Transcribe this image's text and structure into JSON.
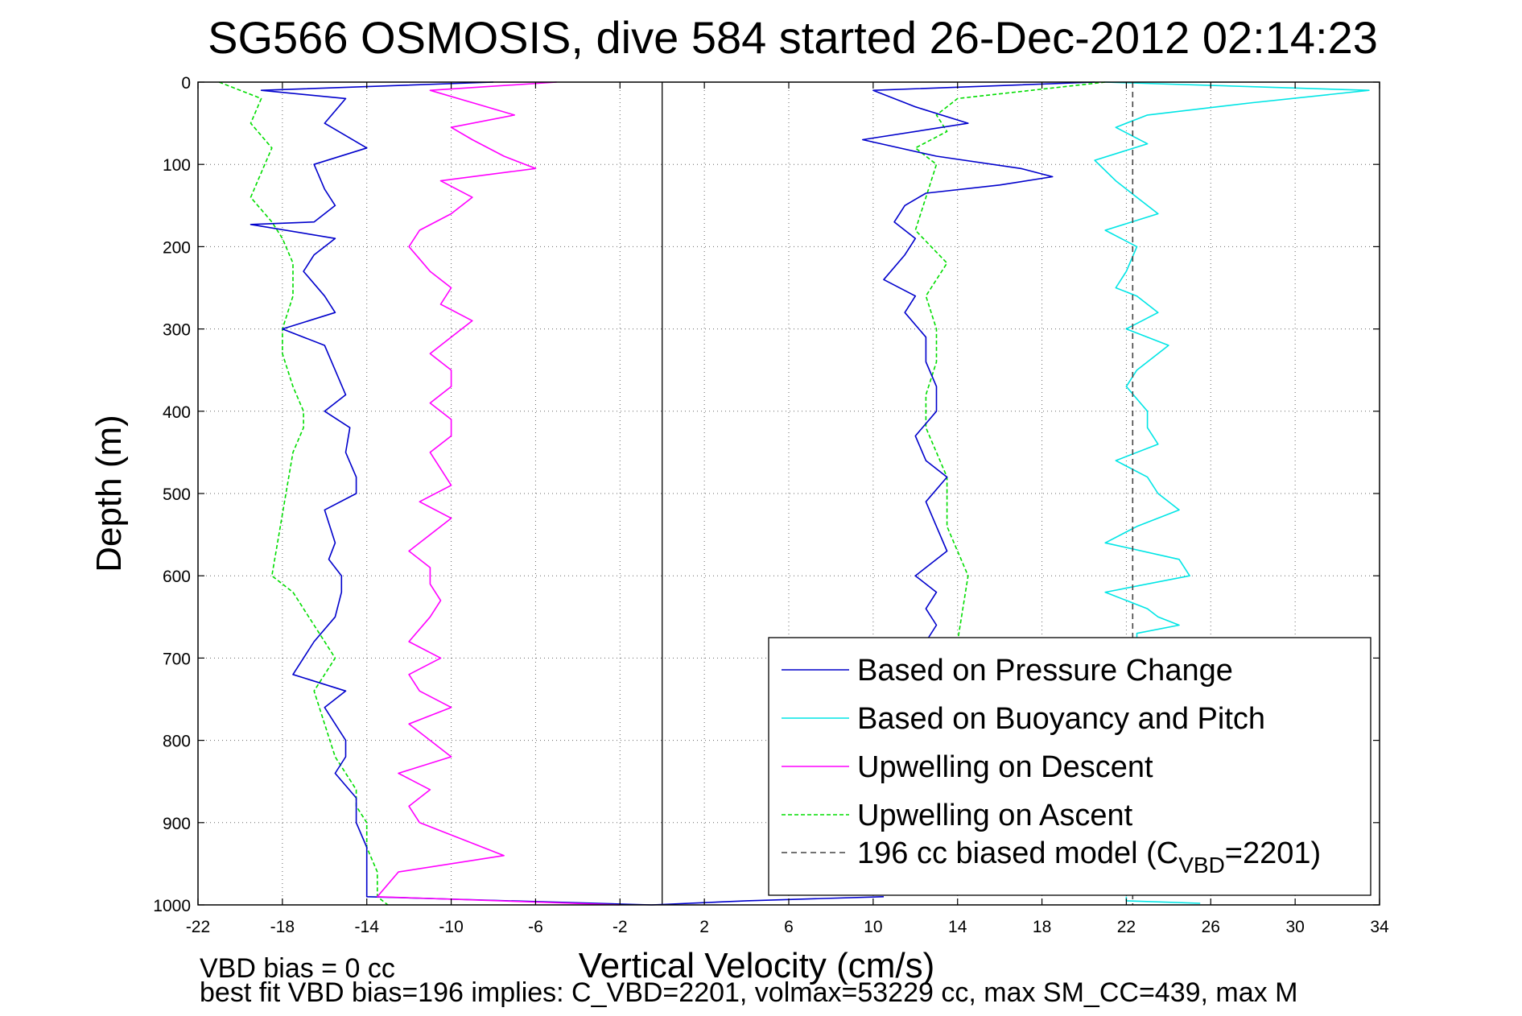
{
  "chart_data": {
    "type": "line",
    "title": "SG566 OSMOSIS, dive 584 started 26-Dec-2012 02:14:23",
    "xlabel": "Vertical Velocity (cm/s)",
    "ylabel": "Depth (m)",
    "xlim": [
      -22,
      34
    ],
    "ylim": [
      1000,
      0
    ],
    "y_reversed": true,
    "grid": true,
    "xticks": [
      -22,
      -18,
      -14,
      -10,
      -6,
      -2,
      2,
      6,
      10,
      14,
      18,
      22,
      26,
      30,
      34
    ],
    "yticks": [
      0,
      100,
      200,
      300,
      400,
      500,
      600,
      700,
      800,
      900,
      1000
    ],
    "legend_position": "lower-right",
    "zero_line": 0,
    "model_line": {
      "x": 22.3,
      "style": "dashed",
      "color": "#444444"
    },
    "series": [
      {
        "name": "Based on Pressure Change",
        "style": "solid",
        "color": "#0000cc",
        "points": [
          {
            "label": "descent",
            "x": [
              -8,
              -19,
              -15,
              -16,
              -14,
              -16.5,
              -16,
              -15.5,
              -16,
              -16.5,
              -19.5,
              -15.5,
              -16.5,
              -17,
              -16,
              -15.5,
              -18,
              -16,
              -15.5,
              -15,
              -16,
              -14.8,
              -15,
              -14.5,
              -14.5,
              -16,
              -15.5,
              -15.8,
              -15.2,
              -15.2,
              -15.5,
              -16.5,
              -17.5,
              -15,
              -16,
              -15.5,
              -15,
              -15,
              -15.5,
              -14.5,
              -14.5,
              -14,
              -14,
              -14,
              -0.5
            ],
            "y": [
              0,
              10,
              20,
              50,
              80,
              100,
              130,
              150,
              160,
              170,
              173,
              190,
              210,
              230,
              260,
              280,
              300,
              320,
              350,
              380,
              400,
              420,
              450,
              480,
              500,
              520,
              560,
              580,
              600,
              620,
              650,
              680,
              720,
              740,
              760,
              780,
              800,
              820,
              840,
              870,
              900,
              930,
              960,
              990,
              1000
            ]
          },
          {
            "label": "ascent",
            "x": [
              20.5,
              10,
              12,
              14.5,
              9.5,
              13,
              17,
              18.5,
              16,
              12.5,
              11.5,
              11,
              12,
              11.5,
              10.5,
              12,
              11.5,
              12.5,
              12.5,
              13,
              13,
              12,
              12.5,
              13.5,
              12.5,
              13,
              13.5,
              12,
              13,
              12.5,
              13,
              12.5,
              12
            ],
            "y": [
              0,
              10,
              30,
              50,
              70,
              90,
              105,
              115,
              125,
              135,
              150,
              170,
              190,
              210,
              240,
              260,
              280,
              310,
              340,
              370,
              400,
              430,
              460,
              480,
              510,
              540,
              570,
              600,
              620,
              640,
              660,
              680,
              700
            ]
          },
          {
            "label": "ascent-bottom",
            "x": [
              10.5,
              4,
              -0.5
            ],
            "y": [
              990,
              995,
              1000
            ]
          }
        ]
      },
      {
        "name": "Based on Buoyancy and Pitch",
        "style": "solid",
        "color": "#00e5e5",
        "points": [
          {
            "label": "ascent",
            "x": [
              21,
              33.5,
              28,
              23,
              21.5,
              23,
              20.5,
              21.5,
              22.5,
              23.5,
              21,
              22.5,
              22,
              21.5,
              22.5,
              23.5,
              22,
              24,
              22.5,
              22,
              23,
              23,
              23.5,
              21.5,
              23,
              23.5,
              24.5,
              22.5,
              21,
              24.5,
              25,
              21,
              23,
              23.5,
              24.5,
              22.5,
              22.5
            ],
            "y": [
              0,
              10,
              25,
              40,
              55,
              75,
              95,
              120,
              140,
              160,
              180,
              200,
              230,
              250,
              260,
              280,
              300,
              320,
              350,
              370,
              400,
              420,
              440,
              460,
              480,
              500,
              520,
              540,
              560,
              580,
              600,
              620,
              640,
              650,
              660,
              670,
              680
            ]
          },
          {
            "label": "ascent-bottom",
            "x": [
              22,
              22,
              25.5
            ],
            "y": [
              990,
              995,
              998
            ]
          }
        ]
      },
      {
        "name": "Upwelling on Descent",
        "style": "solid",
        "color": "#ff00ff",
        "points": [
          {
            "label": "descent",
            "x": [
              -5,
              -11,
              -9,
              -7,
              -10,
              -9,
              -7.5,
              -6,
              -10.5,
              -9,
              -10,
              -11.5,
              -12,
              -11.5,
              -11,
              -10,
              -10.5,
              -9,
              -10,
              -11,
              -10,
              -10,
              -11,
              -10,
              -10,
              -11,
              -10.5,
              -10,
              -11.5,
              -10,
              -11,
              -12,
              -11,
              -11,
              -10.5,
              -11,
              -12,
              -10.5,
              -12,
              -11.5,
              -10,
              -12,
              -11,
              -10,
              -12.5,
              -11,
              -12,
              -11.5,
              -7.5,
              -12.5,
              -13.5,
              -2
            ],
            "y": [
              0,
              10,
              25,
              40,
              55,
              70,
              90,
              105,
              120,
              140,
              160,
              180,
              200,
              215,
              230,
              250,
              270,
              290,
              310,
              330,
              350,
              370,
              390,
              410,
              430,
              450,
              470,
              490,
              510,
              530,
              550,
              570,
              590,
              610,
              630,
              650,
              680,
              700,
              720,
              740,
              760,
              780,
              800,
              820,
              840,
              860,
              880,
              900,
              940,
              960,
              990,
              1000
            ]
          }
        ]
      },
      {
        "name": "Upwelling on Ascent",
        "style": "dashed",
        "color": "#00dd00",
        "points": [
          {
            "label": "descent",
            "x": [
              -21,
              -19,
              -19.5,
              -18.5,
              -19,
              -19.5,
              -18.5,
              -18,
              -17.5,
              -17.5,
              -18,
              -18,
              -17.5,
              -17,
              -17,
              -17.5,
              -18.5,
              -17.5,
              -16.5,
              -15.5,
              -16.5,
              -16,
              -15.5,
              -14.5,
              -14.5,
              -14,
              -14,
              -13.5,
              -13.5,
              -13
            ],
            "y": [
              0,
              20,
              50,
              80,
              110,
              140,
              170,
              190,
              220,
              260,
              300,
              330,
              370,
              400,
              420,
              450,
              600,
              620,
              660,
              700,
              740,
              780,
              820,
              860,
              880,
              900,
              930,
              960,
              990,
              1000
            ]
          },
          {
            "label": "ascent",
            "x": [
              21,
              14,
              13,
              13.5,
              12,
              13,
              12.5,
              12,
              13.5,
              12.5,
              13,
              13,
              12.5,
              12.5,
              13.5,
              13.5,
              14.5,
              14
            ],
            "y": [
              0,
              20,
              40,
              60,
              80,
              100,
              140,
              180,
              220,
              260,
              300,
              340,
              380,
              420,
              480,
              540,
              600,
              680
            ]
          }
        ]
      },
      {
        "name": "196 cc biased model (C_VBD=2201)",
        "style": "dashed",
        "color": "#444444",
        "points": [
          {
            "label": "model",
            "x": [
              22.3,
              22.3
            ],
            "y": [
              0,
              1000
            ]
          }
        ]
      }
    ],
    "legend": {
      "items": [
        {
          "label": "Based on Pressure Change",
          "color": "#0000cc",
          "dashed": false
        },
        {
          "label": "Based on Buoyancy and Pitch",
          "color": "#00e5e5",
          "dashed": false
        },
        {
          "label": "Upwelling on Descent",
          "color": "#ff00ff",
          "dashed": false
        },
        {
          "label": "Upwelling on Ascent",
          "color": "#00dd00",
          "dashed": true
        },
        {
          "label": "196 cc biased model (C",
          "color": "#444444",
          "dashed": true,
          "sub": "VBD",
          "suffix": "=2201)"
        }
      ]
    },
    "annotations": {
      "line1": "VBD bias = 0 cc",
      "line2": "best fit VBD bias=196 implies: C_VBD=2201, volmax=53229 cc, max SM_CC=439, max M"
    }
  }
}
